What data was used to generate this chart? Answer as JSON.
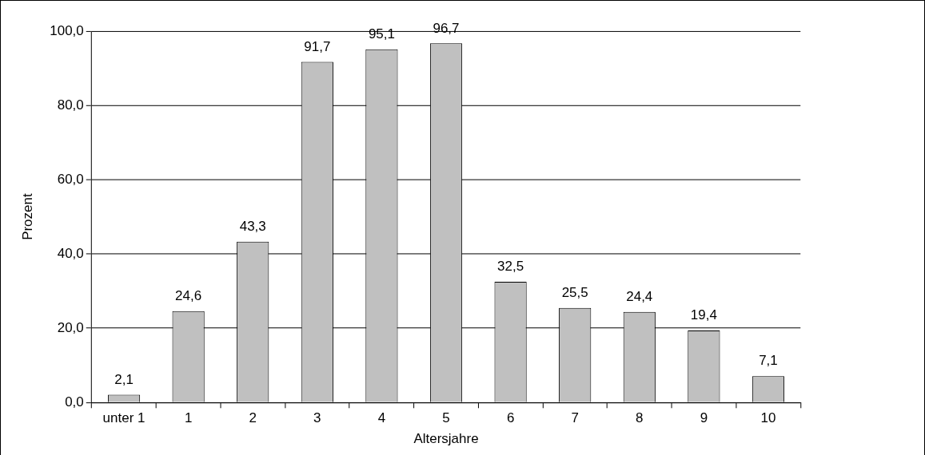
{
  "chart_data": {
    "type": "bar",
    "xlabel": "Altersjahre",
    "ylabel": "Prozent",
    "categories": [
      "unter 1",
      "1",
      "2",
      "3",
      "4",
      "5",
      "6",
      "7",
      "8",
      "9",
      "10"
    ],
    "values": [
      2.1,
      24.6,
      43.3,
      91.7,
      95.1,
      96.7,
      32.5,
      25.5,
      24.4,
      19.4,
      7.1
    ],
    "value_labels": [
      "2,1",
      "24,6",
      "43,3",
      "91,7",
      "95,1",
      "96,7",
      "32,5",
      "25,5",
      "24,4",
      "19,4",
      "7,1"
    ],
    "color": "#c0c0c0",
    "ylim": [
      0,
      100
    ],
    "yticks": [
      {
        "value": 0,
        "label": "0,0"
      },
      {
        "value": 20,
        "label": "20,0"
      },
      {
        "value": 40,
        "label": "40,0"
      },
      {
        "value": 60,
        "label": "60,0"
      },
      {
        "value": 80,
        "label": "80,0"
      },
      {
        "value": 100,
        "label": "100,0"
      }
    ],
    "grid": "y",
    "legend": false
  }
}
